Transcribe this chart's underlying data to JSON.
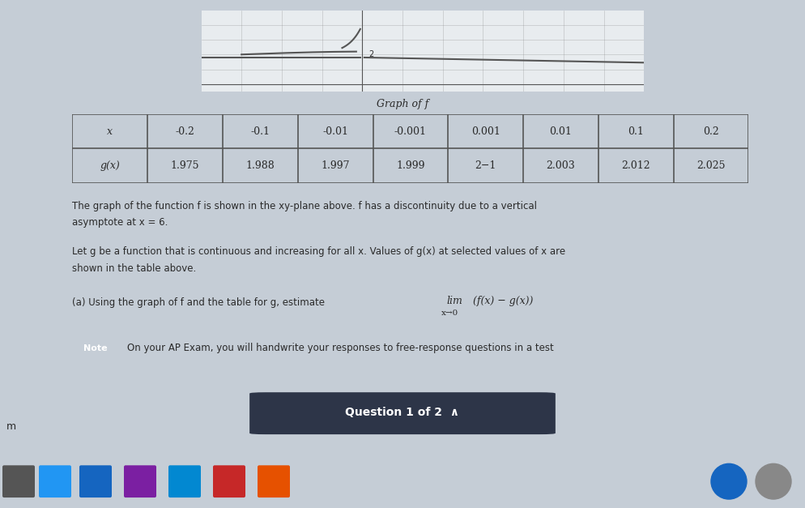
{
  "bg_color": "#c5cdd6",
  "content_bg": "#d8dfe6",
  "graph_title": "Graph of f",
  "table_headers": [
    "x",
    "-0.2",
    "-0.1",
    "-0.01",
    "-0.001",
    "0.001",
    "0.01",
    "0.1",
    "0.2"
  ],
  "table_row_label": "g(x)",
  "table_values": [
    "1.975",
    "1.988",
    "1.997",
    "1.999",
    "2−1",
    "2.003",
    "2.012",
    "2.025"
  ],
  "para1_line1": "The graph of the function f is shown in the xy-plane above. f has a discontinuity due to a vertical",
  "para1_line2": "asymptote at x = 6.",
  "para2_line1": "Let g be a function that is continuous and increasing for all x. Values of g(x) at selected values of x are",
  "para2_line2": "shown in the table above.",
  "part_a_text": "(a) Using the graph of f and the table for g, estimate",
  "note_label": "Note",
  "note_text": "On your AP Exam, you will handwrite your responses to free-response questions in a test",
  "underline_text": "m",
  "bottom_btn_text": "Question 1 of 2  ∧",
  "text_color": "#2a2a2a",
  "dark_text": "#1a1a1a",
  "table_border": "#555555",
  "note_bg": "#1a1a1a",
  "bottom_bg": "#3c4455",
  "btn_bg": "#2d3548",
  "taskbar_bg": "#3a3f50",
  "divider_color": "#aaaaaa",
  "graph_line_color": "#555555",
  "graph_grid_color": "#888888",
  "graph_bg": "#e8ecef"
}
